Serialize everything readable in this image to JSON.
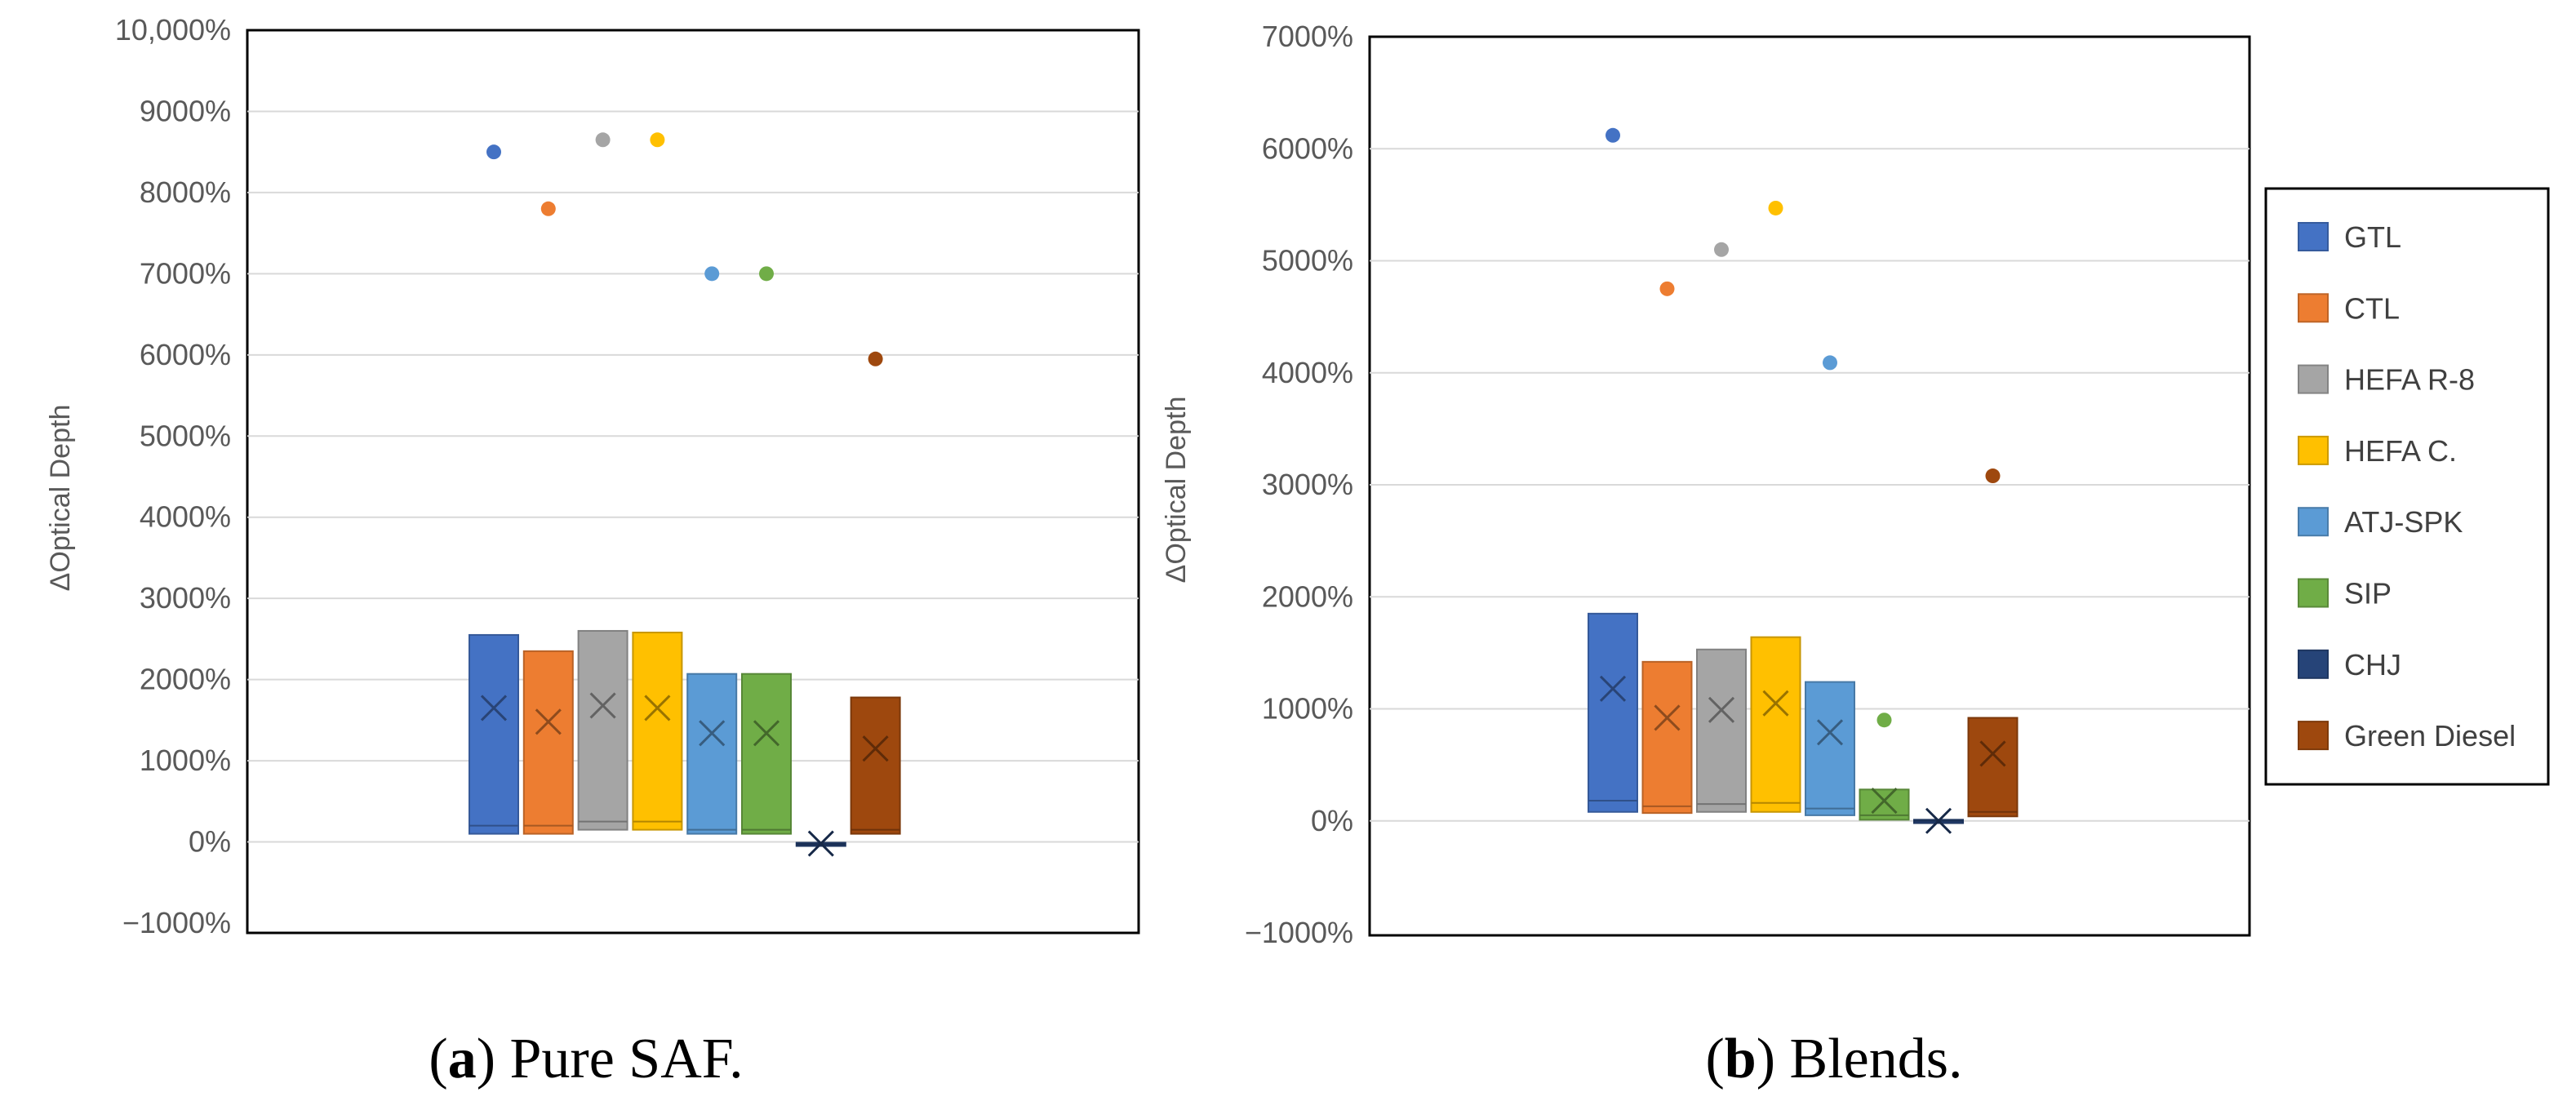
{
  "chart_data": [
    {
      "type": "box",
      "panel": "a",
      "caption_label": "a",
      "caption_text": ") Pure SAF.",
      "ylabel": "ΔOptical Depth",
      "ylim": [
        -1000,
        10000
      ],
      "yticks": [
        -1000,
        0,
        1000,
        2000,
        3000,
        4000,
        5000,
        6000,
        7000,
        8000,
        9000,
        10000
      ],
      "ytick_labels": [
        "−1000%",
        "0%",
        "1000%",
        "2000%",
        "3000%",
        "4000%",
        "5000%",
        "6000%",
        "7000%",
        "8000%",
        "9000%",
        "10,000%"
      ],
      "grid": true,
      "series": [
        {
          "name": "GTL",
          "q1": 100,
          "median": 200,
          "q3": 2550,
          "mean": 1650,
          "outlier": 8500
        },
        {
          "name": "CTL",
          "q1": 100,
          "median": 200,
          "q3": 2350,
          "mean": 1480,
          "outlier": 7800
        },
        {
          "name": "HEFA R-8",
          "q1": 150,
          "median": 250,
          "q3": 2600,
          "mean": 1680,
          "outlier": 8650
        },
        {
          "name": "HEFA C.",
          "q1": 150,
          "median": 250,
          "q3": 2580,
          "mean": 1650,
          "outlier": 8650
        },
        {
          "name": "ATJ-SPK",
          "q1": 100,
          "median": 150,
          "q3": 2070,
          "mean": 1340,
          "outlier": 7000
        },
        {
          "name": "SIP",
          "q1": 100,
          "median": 150,
          "q3": 2070,
          "mean": 1340,
          "outlier": 7000
        },
        {
          "name": "CHJ",
          "q1": -50,
          "median": -30,
          "q3": -10,
          "mean": -20,
          "outlier": null
        },
        {
          "name": "Green Diesel",
          "q1": 100,
          "median": 150,
          "q3": 1780,
          "mean": 1150,
          "outlier": 5950
        }
      ]
    },
    {
      "type": "box",
      "panel": "b",
      "caption_label": "b",
      "caption_text": ") Blends.",
      "ylabel": "ΔOptical Depth",
      "ylim": [
        -1000,
        7000
      ],
      "yticks": [
        -1000,
        0,
        1000,
        2000,
        3000,
        4000,
        5000,
        6000,
        7000
      ],
      "ytick_labels": [
        "−1000%",
        "0%",
        "1000%",
        "2000%",
        "3000%",
        "4000%",
        "5000%",
        "6000%",
        "7000%"
      ],
      "grid": true,
      "series": [
        {
          "name": "GTL",
          "q1": 80,
          "median": 180,
          "q3": 1850,
          "mean": 1180,
          "outlier": 6120
        },
        {
          "name": "CTL",
          "q1": 70,
          "median": 130,
          "q3": 1420,
          "mean": 920,
          "outlier": 4750
        },
        {
          "name": "HEFA R-8",
          "q1": 80,
          "median": 150,
          "q3": 1530,
          "mean": 990,
          "outlier": 5100
        },
        {
          "name": "HEFA C.",
          "q1": 80,
          "median": 160,
          "q3": 1640,
          "mean": 1050,
          "outlier": 5470
        },
        {
          "name": "ATJ-SPK",
          "q1": 50,
          "median": 110,
          "q3": 1240,
          "mean": 790,
          "outlier": 4090
        },
        {
          "name": "SIP",
          "q1": 10,
          "median": 50,
          "q3": 280,
          "mean": 180,
          "outlier": 900
        },
        {
          "name": "CHJ",
          "q1": -20,
          "median": 0,
          "q3": 10,
          "mean": 0,
          "outlier": null
        },
        {
          "name": "Green Diesel",
          "q1": 40,
          "median": 80,
          "q3": 920,
          "mean": 600,
          "outlier": 3080
        }
      ]
    }
  ],
  "legend": {
    "placement": "right",
    "items": [
      {
        "name": "GTL",
        "color": "#4472C4"
      },
      {
        "name": "CTL",
        "color": "#ED7D31"
      },
      {
        "name": "HEFA R-8",
        "color": "#A5A5A5"
      },
      {
        "name": "HEFA C.",
        "color": "#FFC000"
      },
      {
        "name": "ATJ-SPK",
        "color": "#5B9BD5"
      },
      {
        "name": "SIP",
        "color": "#70AD47"
      },
      {
        "name": "CHJ",
        "color": "#264478"
      },
      {
        "name": "Green Diesel",
        "color": "#9E480E"
      }
    ]
  }
}
